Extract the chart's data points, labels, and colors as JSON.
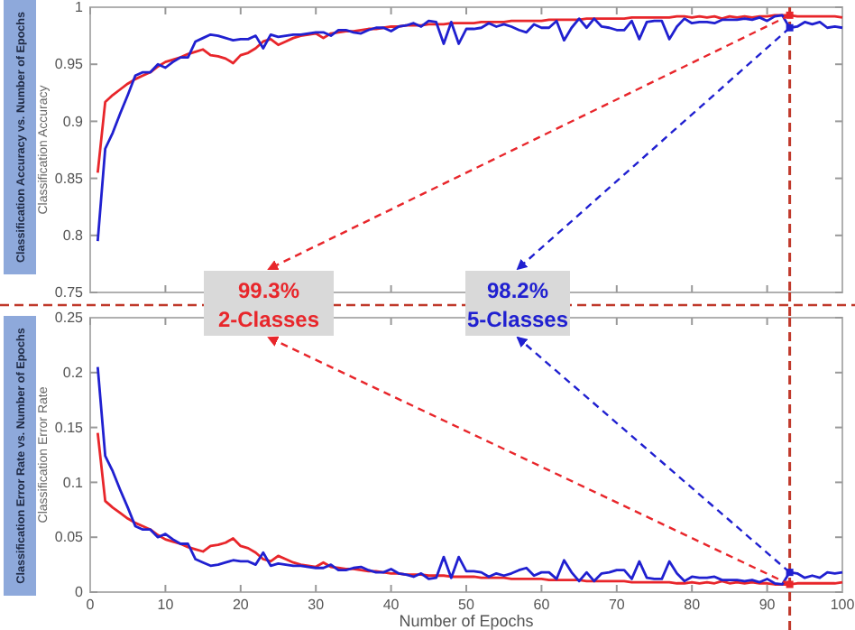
{
  "chart_data": [
    {
      "type": "line",
      "title": "Classification Accuracy  vs. Number of Epochs",
      "ylabel": "Classification Accuracy",
      "xlim": [
        0,
        100
      ],
      "xticks": [
        0,
        10,
        20,
        30,
        40,
        50,
        60,
        70,
        80,
        90,
        100
      ],
      "ylim": [
        0.75,
        1
      ],
      "yticks": [
        0.75,
        0.8,
        0.85,
        0.9,
        0.95,
        1
      ],
      "tick_labels": "y",
      "grid": false,
      "legend": false,
      "line_style": "solid",
      "marker": "none",
      "x": [
        1,
        2,
        3,
        4,
        5,
        6,
        7,
        8,
        9,
        10,
        11,
        12,
        13,
        14,
        15,
        16,
        17,
        18,
        19,
        20,
        21,
        22,
        23,
        24,
        25,
        26,
        27,
        28,
        29,
        30,
        31,
        32,
        33,
        34,
        35,
        36,
        37,
        38,
        39,
        40,
        41,
        42,
        43,
        44,
        45,
        46,
        47,
        48,
        49,
        50,
        51,
        52,
        53,
        54,
        55,
        56,
        57,
        58,
        59,
        60,
        61,
        62,
        63,
        64,
        65,
        66,
        67,
        68,
        69,
        70,
        71,
        72,
        73,
        74,
        75,
        76,
        77,
        78,
        79,
        80,
        81,
        82,
        83,
        84,
        85,
        86,
        87,
        88,
        89,
        90,
        91,
        92,
        93,
        94,
        95,
        96,
        97,
        98,
        99,
        100
      ],
      "series": [
        {
          "name": "2-Classes",
          "color": "#e8262b",
          "values": [
            0.855,
            0.917,
            0.923,
            0.928,
            0.933,
            0.937,
            0.94,
            0.943,
            0.948,
            0.952,
            0.954,
            0.956,
            0.959,
            0.961,
            0.963,
            0.958,
            0.957,
            0.955,
            0.951,
            0.958,
            0.96,
            0.964,
            0.97,
            0.972,
            0.967,
            0.97,
            0.973,
            0.975,
            0.976,
            0.977,
            0.973,
            0.977,
            0.978,
            0.979,
            0.979,
            0.98,
            0.981,
            0.981,
            0.982,
            0.983,
            0.983,
            0.984,
            0.984,
            0.984,
            0.985,
            0.985,
            0.985,
            0.986,
            0.986,
            0.986,
            0.986,
            0.987,
            0.987,
            0.987,
            0.987,
            0.988,
            0.988,
            0.988,
            0.988,
            0.988,
            0.989,
            0.989,
            0.989,
            0.989,
            0.989,
            0.99,
            0.99,
            0.99,
            0.99,
            0.99,
            0.99,
            0.991,
            0.991,
            0.991,
            0.991,
            0.991,
            0.991,
            0.992,
            0.992,
            0.991,
            0.992,
            0.991,
            0.992,
            0.99,
            0.992,
            0.991,
            0.992,
            0.991,
            0.992,
            0.992,
            0.993,
            0.993,
            0.993,
            0.992,
            0.992,
            0.992,
            0.992,
            0.992,
            0.992,
            0.991
          ]
        },
        {
          "name": "5-Classes",
          "color": "#2020d0",
          "values": [
            0.795,
            0.876,
            0.89,
            0.907,
            0.923,
            0.94,
            0.943,
            0.943,
            0.95,
            0.947,
            0.952,
            0.956,
            0.956,
            0.97,
            0.973,
            0.976,
            0.975,
            0.973,
            0.971,
            0.972,
            0.972,
            0.975,
            0.964,
            0.976,
            0.974,
            0.975,
            0.976,
            0.976,
            0.977,
            0.978,
            0.978,
            0.975,
            0.98,
            0.98,
            0.978,
            0.977,
            0.98,
            0.982,
            0.982,
            0.979,
            0.983,
            0.984,
            0.986,
            0.983,
            0.988,
            0.987,
            0.968,
            0.987,
            0.968,
            0.981,
            0.981,
            0.982,
            0.986,
            0.983,
            0.985,
            0.983,
            0.98,
            0.978,
            0.985,
            0.982,
            0.982,
            0.988,
            0.971,
            0.982,
            0.99,
            0.982,
            0.99,
            0.983,
            0.982,
            0.98,
            0.98,
            0.988,
            0.972,
            0.987,
            0.988,
            0.988,
            0.972,
            0.983,
            0.99,
            0.986,
            0.987,
            0.987,
            0.986,
            0.989,
            0.989,
            0.989,
            0.99,
            0.989,
            0.991,
            0.988,
            0.992,
            0.993,
            0.982,
            0.983,
            0.987,
            0.985,
            0.987,
            0.982,
            0.983,
            0.982
          ]
        }
      ],
      "ref_lines": [
        {
          "axis": "x",
          "value": 93,
          "color": "#c0392b",
          "line_style": "dashed"
        }
      ],
      "annotations": [
        {
          "text": "99.3%",
          "x": 93,
          "y": 0.993
        },
        {
          "text": "98.2%",
          "x": 93,
          "y": 0.982
        }
      ]
    },
    {
      "type": "line",
      "title": "Classification Error Rate  vs. Number of Epochs",
      "ylabel": "Classification Error Rate",
      "xlabel": "Number of Epochs",
      "xlim": [
        0,
        100
      ],
      "xticks": [
        0,
        10,
        20,
        30,
        40,
        50,
        60,
        70,
        80,
        90,
        100
      ],
      "ylim": [
        0,
        0.25
      ],
      "yticks": [
        0,
        0.05,
        0.1,
        0.15,
        0.2,
        0.25
      ],
      "grid": false,
      "legend": false,
      "line_style": "solid",
      "marker": "none",
      "x": [
        1,
        2,
        3,
        4,
        5,
        6,
        7,
        8,
        9,
        10,
        11,
        12,
        13,
        14,
        15,
        16,
        17,
        18,
        19,
        20,
        21,
        22,
        23,
        24,
        25,
        26,
        27,
        28,
        29,
        30,
        31,
        32,
        33,
        34,
        35,
        36,
        37,
        38,
        39,
        40,
        41,
        42,
        43,
        44,
        45,
        46,
        47,
        48,
        49,
        50,
        51,
        52,
        53,
        54,
        55,
        56,
        57,
        58,
        59,
        60,
        61,
        62,
        63,
        64,
        65,
        66,
        67,
        68,
        69,
        70,
        71,
        72,
        73,
        74,
        75,
        76,
        77,
        78,
        79,
        80,
        81,
        82,
        83,
        84,
        85,
        86,
        87,
        88,
        89,
        90,
        91,
        92,
        93,
        94,
        95,
        96,
        97,
        98,
        99,
        100
      ],
      "series": [
        {
          "color": "#e8262b",
          "values": [
            0.145,
            0.083,
            0.077,
            0.072,
            0.067,
            0.063,
            0.06,
            0.057,
            0.052,
            0.048,
            0.046,
            0.044,
            0.041,
            0.039,
            0.037,
            0.042,
            0.043,
            0.045,
            0.049,
            0.042,
            0.04,
            0.036,
            0.03,
            0.028,
            0.033,
            0.03,
            0.027,
            0.025,
            0.024,
            0.023,
            0.027,
            0.023,
            0.022,
            0.021,
            0.021,
            0.02,
            0.019,
            0.019,
            0.018,
            0.017,
            0.017,
            0.016,
            0.016,
            0.016,
            0.015,
            0.015,
            0.015,
            0.014,
            0.014,
            0.014,
            0.014,
            0.013,
            0.013,
            0.013,
            0.013,
            0.012,
            0.012,
            0.012,
            0.012,
            0.012,
            0.011,
            0.011,
            0.011,
            0.011,
            0.011,
            0.01,
            0.01,
            0.01,
            0.01,
            0.01,
            0.01,
            0.009,
            0.009,
            0.009,
            0.009,
            0.009,
            0.009,
            0.008,
            0.008,
            0.009,
            0.008,
            0.009,
            0.008,
            0.01,
            0.008,
            0.009,
            0.008,
            0.009,
            0.008,
            0.008,
            0.007,
            0.007,
            0.007,
            0.008,
            0.008,
            0.008,
            0.008,
            0.008,
            0.008,
            0.009
          ]
        },
        {
          "color": "#2020d0",
          "values": [
            0.205,
            0.124,
            0.11,
            0.093,
            0.077,
            0.06,
            0.057,
            0.057,
            0.05,
            0.053,
            0.048,
            0.044,
            0.044,
            0.03,
            0.027,
            0.024,
            0.025,
            0.027,
            0.029,
            0.028,
            0.028,
            0.025,
            0.036,
            0.024,
            0.026,
            0.025,
            0.024,
            0.024,
            0.023,
            0.022,
            0.022,
            0.025,
            0.02,
            0.02,
            0.022,
            0.023,
            0.02,
            0.018,
            0.018,
            0.021,
            0.017,
            0.016,
            0.014,
            0.017,
            0.012,
            0.013,
            0.032,
            0.013,
            0.032,
            0.019,
            0.019,
            0.018,
            0.014,
            0.017,
            0.015,
            0.017,
            0.02,
            0.022,
            0.015,
            0.018,
            0.018,
            0.012,
            0.029,
            0.018,
            0.01,
            0.018,
            0.01,
            0.017,
            0.018,
            0.02,
            0.02,
            0.012,
            0.028,
            0.013,
            0.012,
            0.012,
            0.028,
            0.017,
            0.01,
            0.014,
            0.013,
            0.013,
            0.014,
            0.011,
            0.011,
            0.011,
            0.01,
            0.011,
            0.009,
            0.012,
            0.008,
            0.007,
            0.018,
            0.017,
            0.013,
            0.015,
            0.013,
            0.018,
            0.017,
            0.018
          ]
        }
      ],
      "ref_lines": [
        {
          "axis": "x",
          "value": 93,
          "color": "#c0392b",
          "line_style": "dashed"
        }
      ]
    }
  ]
}
